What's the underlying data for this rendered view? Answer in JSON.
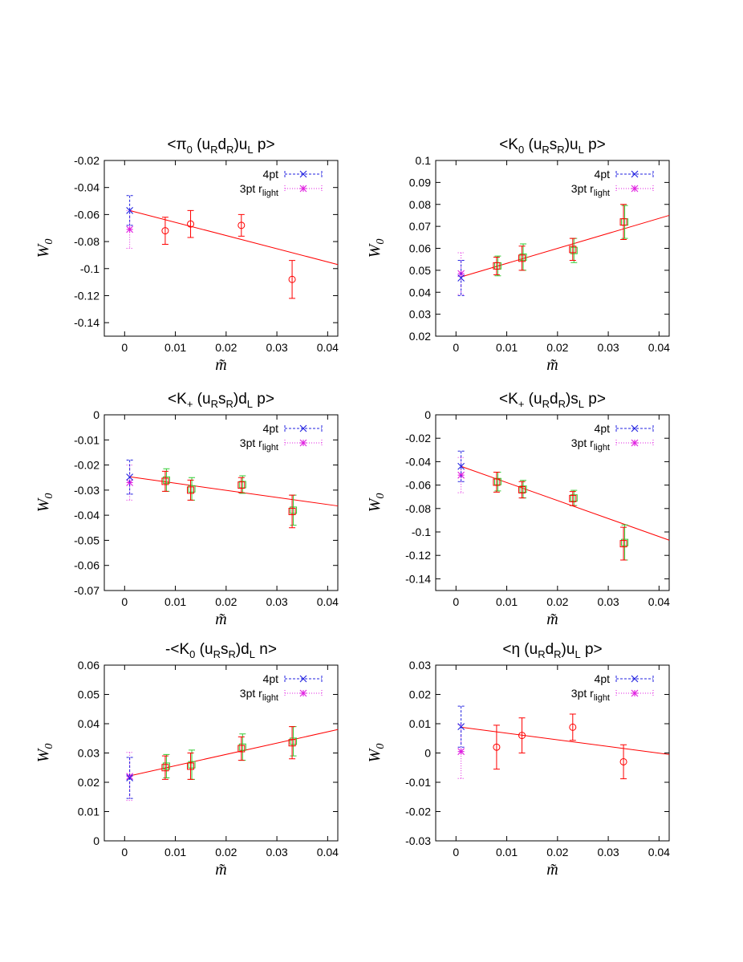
{
  "legend": {
    "entries": [
      {
        "label": "4pt",
        "color": "#2020e0",
        "marker": "x"
      },
      {
        "label_main": "3pt r",
        "label_sub": "light",
        "color": "#e020e0",
        "marker": "star"
      }
    ]
  },
  "chart_data": [
    {
      "type": "scatter",
      "title_parts": [
        [
          "<π",
          ""
        ],
        [
          "0",
          "sub"
        ],
        [
          " (u",
          ""
        ],
        [
          "R",
          "sub"
        ],
        [
          "d",
          ""
        ],
        [
          "R",
          "sub"
        ],
        [
          ")u",
          ""
        ],
        [
          "L",
          "sub"
        ],
        [
          " p>",
          ""
        ]
      ],
      "xlabel": "m̃",
      "ylabel": "W0",
      "xlim": [
        -0.004,
        0.042
      ],
      "ylim": [
        -0.15,
        -0.02
      ],
      "xticks": [
        0,
        0.01,
        0.02,
        0.03,
        0.04
      ],
      "xtick_labels": [
        "0",
        "0.01",
        "0.02",
        "0.03",
        "0.04"
      ],
      "yticks": [
        -0.14,
        -0.12,
        -0.1,
        -0.08,
        -0.06,
        -0.04,
        -0.02
      ],
      "ytick_labels": [
        "-0.14",
        "-0.12",
        "-0.1",
        "-0.08",
        "-0.06",
        "-0.04",
        "-0.02"
      ],
      "fit": {
        "color": "#ff0000",
        "points": [
          [
            0.001,
            -0.057
          ],
          [
            0.042,
            -0.097
          ]
        ]
      },
      "red_points": {
        "marker": "circle",
        "x": [
          0.008,
          0.013,
          0.023,
          0.033
        ],
        "y": [
          -0.072,
          -0.067,
          -0.068,
          -0.108
        ],
        "err": [
          0.01,
          0.01,
          0.008,
          0.014
        ]
      },
      "green_points": null,
      "four_pt": {
        "x": 0.001,
        "y": -0.057,
        "err": 0.011
      },
      "three_pt": {
        "x": 0.001,
        "y": -0.071,
        "err": 0.014
      }
    },
    {
      "type": "scatter",
      "title_parts": [
        [
          "<K",
          ""
        ],
        [
          "0",
          "sub"
        ],
        [
          " (u",
          ""
        ],
        [
          "R",
          "sub"
        ],
        [
          "s",
          ""
        ],
        [
          "R",
          "sub"
        ],
        [
          ")u",
          ""
        ],
        [
          "L",
          "sub"
        ],
        [
          " p>",
          ""
        ]
      ],
      "xlabel": "m̃",
      "ylabel": "W0",
      "xlim": [
        -0.004,
        0.042
      ],
      "ylim": [
        0.02,
        0.1
      ],
      "xticks": [
        0,
        0.01,
        0.02,
        0.03,
        0.04
      ],
      "xtick_labels": [
        "0",
        "0.01",
        "0.02",
        "0.03",
        "0.04"
      ],
      "yticks": [
        0.02,
        0.03,
        0.04,
        0.05,
        0.06,
        0.07,
        0.08,
        0.09,
        0.1
      ],
      "ytick_labels": [
        "0.02",
        "0.03",
        "0.04",
        "0.05",
        "0.06",
        "0.07",
        "0.08",
        "0.09",
        "0.1"
      ],
      "fit": {
        "color": "#ff0000",
        "points": [
          [
            0.001,
            0.047
          ],
          [
            0.042,
            0.075
          ]
        ]
      },
      "red_points": {
        "marker": "square",
        "x": [
          0.008,
          0.013,
          0.023,
          0.033
        ],
        "y": [
          0.052,
          0.0555,
          0.0595,
          0.072
        ],
        "err": [
          0.004,
          0.0055,
          0.005,
          0.008
        ]
      },
      "green_points": {
        "marker": "square",
        "x": [
          0.008,
          0.013,
          0.023,
          0.033
        ],
        "y": [
          0.052,
          0.056,
          0.059,
          0.072
        ],
        "err": [
          0.0045,
          0.006,
          0.0055,
          0.0075
        ]
      },
      "four_pt": {
        "x": 0.001,
        "y": 0.0465,
        "err": 0.008
      },
      "three_pt": {
        "x": 0.001,
        "y": 0.0485,
        "err": 0.0095
      }
    },
    {
      "type": "scatter",
      "title_parts": [
        [
          "<K",
          ""
        ],
        [
          "+",
          "sub"
        ],
        [
          " (u",
          ""
        ],
        [
          "R",
          "sub"
        ],
        [
          "s",
          ""
        ],
        [
          "R",
          "sub"
        ],
        [
          ")d",
          ""
        ],
        [
          "L",
          "sub"
        ],
        [
          " p>",
          ""
        ]
      ],
      "xlabel": "m̃",
      "ylabel": "W0",
      "xlim": [
        -0.004,
        0.042
      ],
      "ylim": [
        -0.07,
        0
      ],
      "xticks": [
        0,
        0.01,
        0.02,
        0.03,
        0.04
      ],
      "xtick_labels": [
        "0",
        "0.01",
        "0.02",
        "0.03",
        "0.04"
      ],
      "yticks": [
        -0.07,
        -0.06,
        -0.05,
        -0.04,
        -0.03,
        -0.02,
        -0.01,
        0
      ],
      "ytick_labels": [
        "-0.07",
        "-0.06",
        "-0.05",
        "-0.04",
        "-0.03",
        "-0.02",
        "-0.01",
        "0"
      ],
      "fit": {
        "color": "#ff0000",
        "points": [
          [
            0.001,
            -0.0247
          ],
          [
            0.042,
            -0.0363
          ]
        ]
      },
      "red_points": {
        "marker": "square",
        "x": [
          0.008,
          0.013,
          0.023,
          0.033
        ],
        "y": [
          -0.0265,
          -0.03,
          -0.028,
          -0.0385
        ],
        "err": [
          0.004,
          0.004,
          0.003,
          0.0065
        ]
      },
      "green_points": {
        "marker": "square",
        "x": [
          0.008,
          0.013,
          0.023,
          0.033
        ],
        "y": [
          -0.026,
          -0.0295,
          -0.0278,
          -0.038
        ],
        "err": [
          0.0045,
          0.0045,
          0.0035,
          0.006
        ]
      },
      "four_pt": {
        "x": 0.001,
        "y": -0.0248,
        "err": 0.0068
      },
      "three_pt": {
        "x": 0.001,
        "y": -0.027,
        "err": 0.007
      }
    },
    {
      "type": "scatter",
      "title_parts": [
        [
          "<K",
          ""
        ],
        [
          "+",
          "sub"
        ],
        [
          " (u",
          ""
        ],
        [
          "R",
          "sub"
        ],
        [
          "d",
          ""
        ],
        [
          "R",
          "sub"
        ],
        [
          ")s",
          ""
        ],
        [
          "L",
          "sub"
        ],
        [
          " p>",
          ""
        ]
      ],
      "xlabel": "m̃",
      "ylabel": "W0",
      "xlim": [
        -0.004,
        0.042
      ],
      "ylim": [
        -0.15,
        0
      ],
      "xticks": [
        0,
        0.01,
        0.02,
        0.03,
        0.04
      ],
      "xtick_labels": [
        "0",
        "0.01",
        "0.02",
        "0.03",
        "0.04"
      ],
      "yticks": [
        -0.14,
        -0.12,
        -0.1,
        -0.08,
        -0.06,
        -0.04,
        -0.02,
        0
      ],
      "ytick_labels": [
        "-0.14",
        "-0.12",
        "-0.1",
        "-0.08",
        "-0.06",
        "-0.04",
        "-0.02",
        "0"
      ],
      "fit": {
        "color": "#ff0000",
        "points": [
          [
            0.001,
            -0.044
          ],
          [
            0.042,
            -0.107
          ]
        ]
      },
      "red_points": {
        "marker": "square",
        "x": [
          0.008,
          0.013,
          0.023,
          0.033
        ],
        "y": [
          -0.0575,
          -0.064,
          -0.0715,
          -0.11
        ],
        "err": [
          0.0085,
          0.007,
          0.006,
          0.014
        ]
      },
      "green_points": {
        "marker": "square",
        "x": [
          0.008,
          0.013,
          0.023,
          0.033
        ],
        "y": [
          -0.057,
          -0.0635,
          -0.071,
          -0.109
        ],
        "err": [
          0.008,
          0.0075,
          0.0065,
          0.015
        ]
      },
      "four_pt": {
        "x": 0.001,
        "y": -0.044,
        "err": 0.013
      },
      "three_pt": {
        "x": 0.001,
        "y": -0.0515,
        "err": 0.015
      }
    },
    {
      "type": "scatter",
      "title_parts": [
        [
          "-<K",
          ""
        ],
        [
          "0",
          "sub"
        ],
        [
          " (u",
          ""
        ],
        [
          "R",
          "sub"
        ],
        [
          "s",
          ""
        ],
        [
          "R",
          "sub"
        ],
        [
          ")d",
          ""
        ],
        [
          "L",
          "sub"
        ],
        [
          " n>",
          ""
        ]
      ],
      "xlabel": "m̃",
      "ylabel": "W0",
      "xlim": [
        -0.004,
        0.042
      ],
      "ylim": [
        0,
        0.06
      ],
      "xticks": [
        0,
        0.01,
        0.02,
        0.03,
        0.04
      ],
      "xtick_labels": [
        "0",
        "0.01",
        "0.02",
        "0.03",
        "0.04"
      ],
      "yticks": [
        0,
        0.01,
        0.02,
        0.03,
        0.04,
        0.05,
        0.06
      ],
      "ytick_labels": [
        "0",
        "0.01",
        "0.02",
        "0.03",
        "0.04",
        "0.05",
        "0.06"
      ],
      "fit": {
        "color": "#ff0000",
        "points": [
          [
            0.001,
            0.0222
          ],
          [
            0.042,
            0.038
          ]
        ]
      },
      "red_points": {
        "marker": "square",
        "x": [
          0.008,
          0.013,
          0.023,
          0.033
        ],
        "y": [
          0.025,
          0.0255,
          0.0315,
          0.0335
        ],
        "err": [
          0.004,
          0.0045,
          0.004,
          0.0055
        ]
      },
      "green_points": {
        "marker": "square",
        "x": [
          0.008,
          0.013,
          0.023,
          0.033
        ],
        "y": [
          0.0255,
          0.026,
          0.032,
          0.034
        ],
        "err": [
          0.004,
          0.005,
          0.0045,
          0.005
        ]
      },
      "four_pt": {
        "x": 0.001,
        "y": 0.0215,
        "err": 0.007
      },
      "three_pt": {
        "x": 0.001,
        "y": 0.022,
        "err": 0.0082
      }
    },
    {
      "type": "scatter",
      "title_parts": [
        [
          "<η (u",
          ""
        ],
        [
          "R",
          "sub"
        ],
        [
          "d",
          ""
        ],
        [
          "R",
          "sub"
        ],
        [
          ")u",
          ""
        ],
        [
          "L",
          "sub"
        ],
        [
          " p>",
          ""
        ]
      ],
      "xlabel": "m̃",
      "ylabel": "W0",
      "xlim": [
        -0.004,
        0.042
      ],
      "ylim": [
        -0.03,
        0.03
      ],
      "xticks": [
        0,
        0.01,
        0.02,
        0.03,
        0.04
      ],
      "xtick_labels": [
        "0",
        "0.01",
        "0.02",
        "0.03",
        "0.04"
      ],
      "yticks": [
        -0.03,
        -0.02,
        -0.01,
        0,
        0.01,
        0.02,
        0.03
      ],
      "ytick_labels": [
        "-0.03",
        "-0.02",
        "-0.01",
        "0",
        "0.01",
        "0.02",
        "0.03"
      ],
      "fit": {
        "color": "#ff0000",
        "points": [
          [
            0.001,
            0.0088
          ],
          [
            0.042,
            -0.0005
          ]
        ]
      },
      "red_points": {
        "marker": "circle",
        "x": [
          0.008,
          0.013,
          0.023,
          0.033
        ],
        "y": [
          0.002,
          0.006,
          0.0088,
          -0.003
        ],
        "err": [
          0.0075,
          0.006,
          0.0045,
          0.0058
        ]
      },
      "green_points": null,
      "four_pt": {
        "x": 0.001,
        "y": 0.009,
        "err": 0.007
      },
      "three_pt": {
        "x": 0.001,
        "y": 0.0005,
        "err": 0.0092
      }
    }
  ]
}
